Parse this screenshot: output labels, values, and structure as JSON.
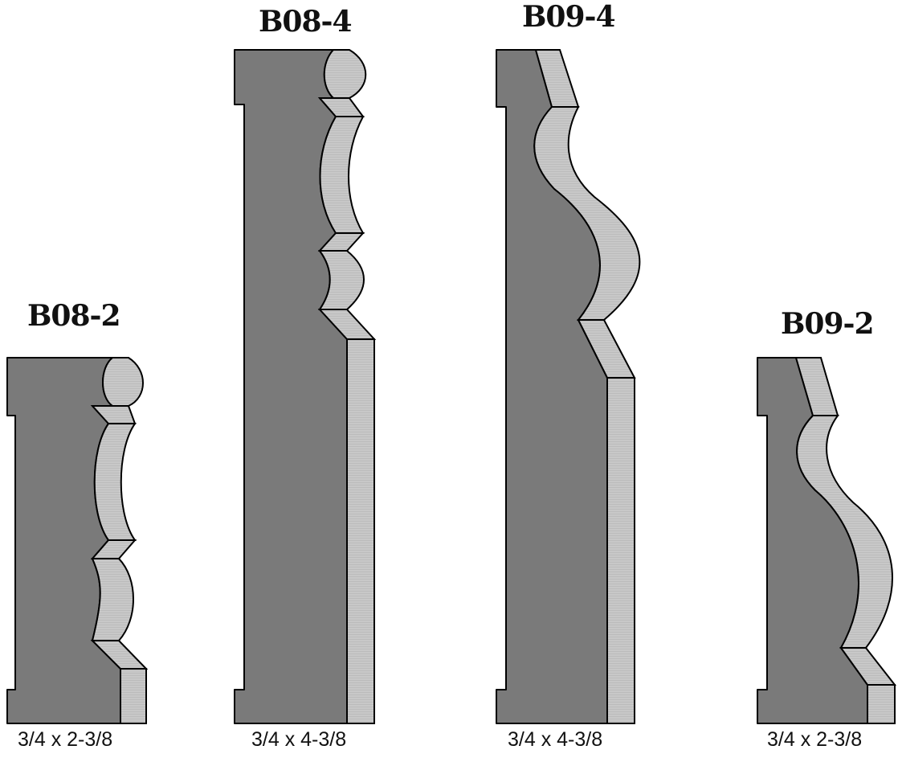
{
  "colors": {
    "profile_face": "#7a7a7a",
    "edge_face": "#c8c8c8",
    "outline": "#000000",
    "background": "#ffffff"
  },
  "moldings": [
    {
      "id": "B08-2",
      "title": "B08-2",
      "dimension": "3/4 x 2-3/8"
    },
    {
      "id": "B08-4",
      "title": "B08-4",
      "dimension": "3/4 x 4-3/8"
    },
    {
      "id": "B09-4",
      "title": "B09-4",
      "dimension": "3/4 x 4-3/8"
    },
    {
      "id": "B09-2",
      "title": "B09-2",
      "dimension": "3/4 x 2-3/8"
    }
  ]
}
